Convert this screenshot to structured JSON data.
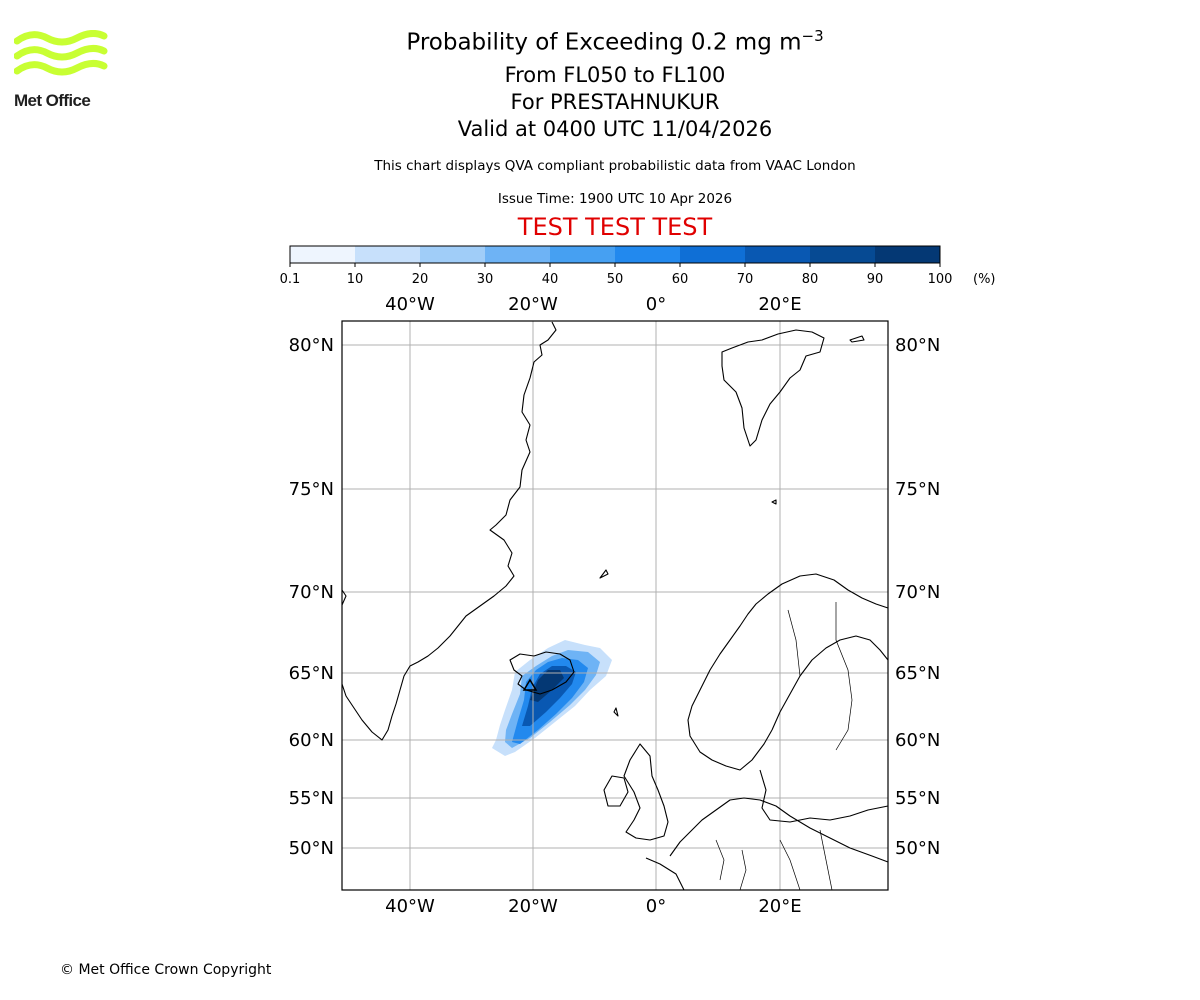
{
  "logo": {
    "text": "Met Office",
    "wave_color": "#c8ff33"
  },
  "title": {
    "line1": "Probability of Exceeding 0.2 mg m",
    "line1_exponent": "−3",
    "line2": "From FL050 to FL100",
    "line3": "For PRESTAHNUKUR",
    "line4": "Valid at 0400 UTC 11/04/2026"
  },
  "subtitle": "This chart displays QVA compliant probabilistic data from VAAC London",
  "issue_time": "Issue Time: 1900 UTC 10 Apr 2026",
  "test_banner": "TEST TEST TEST",
  "colorbar": {
    "tick_labels": [
      "0.1",
      "10",
      "20",
      "30",
      "40",
      "50",
      "60",
      "70",
      "80",
      "90",
      "100"
    ],
    "unit": "(%)",
    "colors": [
      "#eef5fe",
      "#c7e0fb",
      "#a0cdf8",
      "#6eb3f5",
      "#46a0f2",
      "#2289ee",
      "#0f6fd6",
      "#0958b2",
      "#064a93",
      "#043874"
    ]
  },
  "map": {
    "lon_labels_top": [
      "40°W",
      "20°W",
      "0°",
      "20°E"
    ],
    "lon_labels_bottom": [
      "40°W",
      "20°W",
      "0°",
      "20°E"
    ],
    "lat_labels_left": [
      "80°N",
      "75°N",
      "70°N",
      "65°N",
      "60°N",
      "55°N",
      "50°N"
    ],
    "lat_labels_right": [
      "80°N",
      "75°N",
      "70°N",
      "65°N",
      "60°N",
      "55°N",
      "50°N"
    ],
    "volcano_marker": "triangle"
  },
  "copyright": "© Met Office Crown Copyright"
}
